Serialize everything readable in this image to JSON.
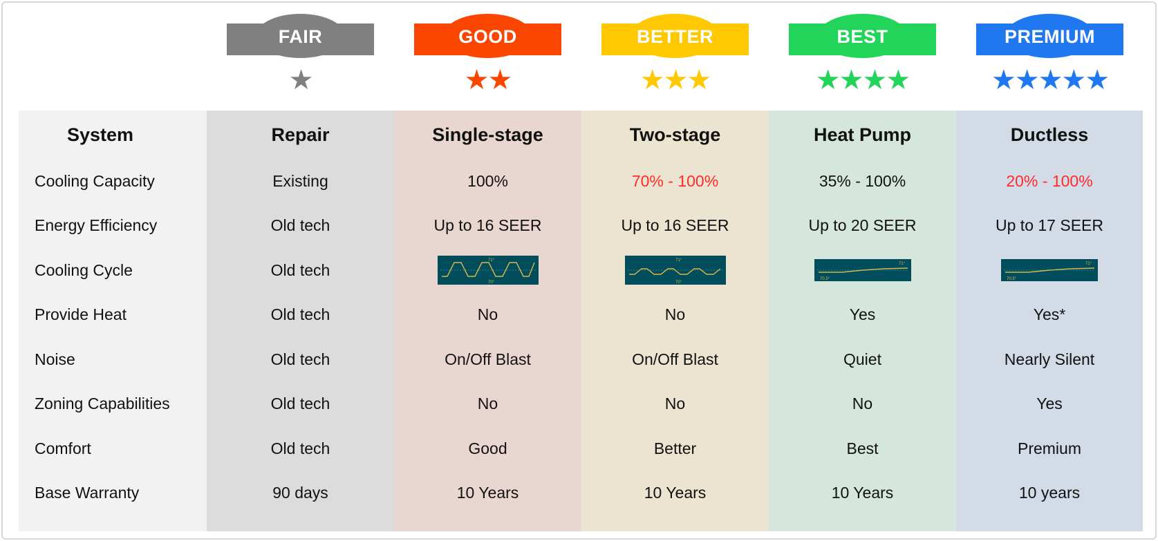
{
  "tiers": [
    {
      "label": "FAIR",
      "stars": "★",
      "color": "#808080"
    },
    {
      "label": "GOOD",
      "stars": "★★",
      "color": "#fa4600"
    },
    {
      "label": "BETTER",
      "stars": "★★★",
      "color": "#ffc800"
    },
    {
      "label": "BEST",
      "stars": "★★★★",
      "color": "#22d45a"
    },
    {
      "label": "PREMIUM",
      "stars": "★★★★★",
      "color": "#1f78f0"
    }
  ],
  "row_labels": [
    "System",
    "Cooling Capacity",
    "Energy Efficiency",
    "Cooling Cycle",
    "Provide Heat",
    "Noise",
    "Zoning Capabilities",
    "Comfort",
    "Base Warranty"
  ],
  "columns": [
    {
      "name": "Repair",
      "bg": "#dcdcdc",
      "cooling_capacity": "Existing",
      "energy": "Old tech",
      "cycle": "Old tech",
      "heat": "Old tech",
      "noise": "Old tech",
      "zoning": "Old tech",
      "comfort": "Old tech",
      "warranty": "90 days"
    },
    {
      "name": "Single-stage",
      "bg": "#ead6d0",
      "cooling_capacity": "100%",
      "energy": "Up to 16 SEER",
      "cycle_chart": {
        "high": "71°",
        "low": "70°"
      },
      "heat": "No",
      "noise": "On/Off Blast",
      "zoning": "No",
      "comfort": "Good",
      "warranty": "10 Years"
    },
    {
      "name": "Two-stage",
      "bg": "#ebe4d0",
      "cooling_capacity": "70% -  100%",
      "energy": "Up to 16 SEER",
      "cycle_chart": {
        "high": "71°",
        "low": "70°"
      },
      "heat": "No",
      "noise": "On/Off Blast",
      "zoning": "No",
      "comfort": "Better",
      "warranty": "10 Years"
    },
    {
      "name": "Heat Pump",
      "bg": "#d5e6dc",
      "cooling_capacity": "35% - 100%",
      "energy": "Up to 20 SEER",
      "cycle_chart": {
        "high": "71°",
        "low": "70.5°"
      },
      "heat": "Yes",
      "noise": "Quiet",
      "zoning": "No",
      "comfort": "Best",
      "warranty": "10 Years"
    },
    {
      "name": "Ductless",
      "bg": "#d3dce6",
      "cooling_capacity": "20% - 100%",
      "energy": "Up to 17 SEER",
      "cycle_chart": {
        "high": "71°",
        "low": "70.5°"
      },
      "heat": "Yes*",
      "noise": "Nearly Silent",
      "zoning": "Yes",
      "comfort": "Premium",
      "warranty": "10 years"
    }
  ],
  "system_bg": "#f2f2f2",
  "highlight_color": "#ff2a2a"
}
